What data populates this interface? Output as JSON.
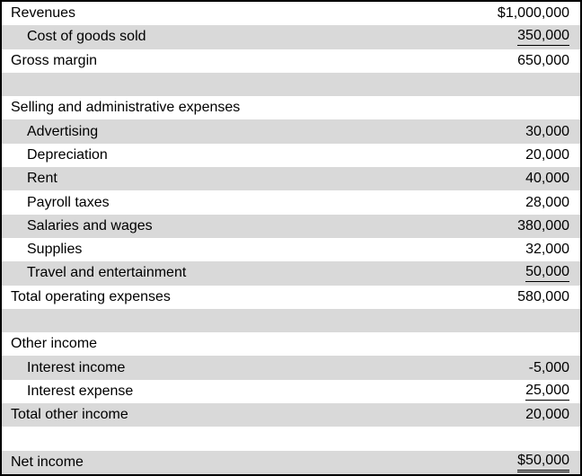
{
  "colors": {
    "row_shade": "#d9d9d9",
    "border": "#000000",
    "text": "#000000",
    "background": "#ffffff"
  },
  "table": {
    "rows": [
      {
        "label": "Revenues",
        "value": "$1,000,000"
      },
      {
        "label": "Cost of goods sold",
        "value": "350,000"
      },
      {
        "label": "Gross margin",
        "value": "650,000"
      },
      {
        "label": "",
        "value": ""
      },
      {
        "label": "Selling and administrative expenses",
        "value": ""
      },
      {
        "label": "Advertising",
        "value": "30,000"
      },
      {
        "label": "Depreciation",
        "value": "20,000"
      },
      {
        "label": "Rent",
        "value": "40,000"
      },
      {
        "label": "Payroll taxes",
        "value": "28,000"
      },
      {
        "label": "Salaries and wages",
        "value": "380,000"
      },
      {
        "label": "Supplies",
        "value": "32,000"
      },
      {
        "label": "Travel and entertainment",
        "value": "50,000"
      },
      {
        "label": "Total operating expenses",
        "value": "580,000"
      },
      {
        "label": "",
        "value": ""
      },
      {
        "label": "Other income",
        "value": ""
      },
      {
        "label": "Interest income",
        "value": "-5,000"
      },
      {
        "label": "Interest expense",
        "value": "25,000"
      },
      {
        "label": "Total other income",
        "value": "20,000"
      },
      {
        "label": "",
        "value": ""
      },
      {
        "label": "Net income",
        "value": "$50,000"
      }
    ]
  }
}
